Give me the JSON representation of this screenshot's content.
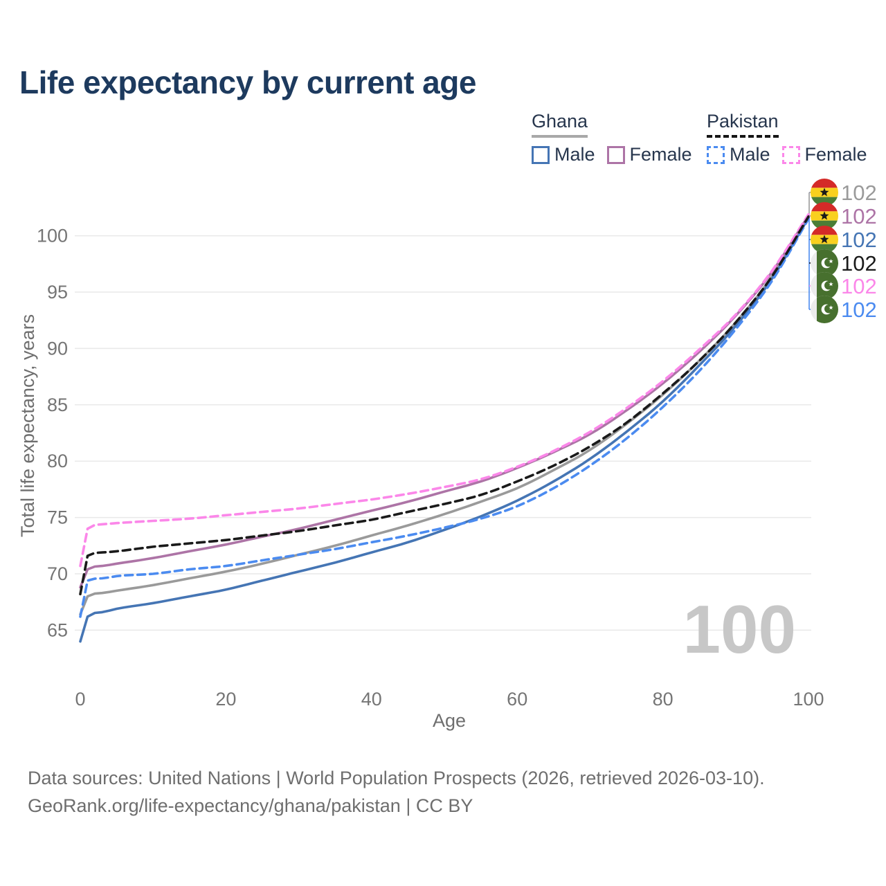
{
  "title": "Life expectancy by current age",
  "watermark": "100",
  "legend": {
    "groups": [
      {
        "name": "Ghana",
        "underline": "solid",
        "underline_color": "#a8a8a8",
        "items": [
          {
            "label": "Male",
            "color": "#4575b4",
            "dash": "solid"
          },
          {
            "label": "Female",
            "color": "#ad74a6",
            "dash": "solid"
          }
        ]
      },
      {
        "name": "Pakistan",
        "underline": "dashed",
        "underline_color": "#151515",
        "items": [
          {
            "label": "Male",
            "color": "#4b8bf0",
            "dash": "dashed"
          },
          {
            "label": "Female",
            "color": "#fb87e9",
            "dash": "dashed"
          }
        ]
      }
    ]
  },
  "footer": {
    "line1": "Data sources: United Nations | World Population Prospects (2026, retrieved 2026-03-10).",
    "line2": "GeoRank.org/life-expectancy/ghana/pakistan | CC BY"
  },
  "chart_data": {
    "type": "line",
    "title": "Life expectancy by current age",
    "xlabel": "Age",
    "ylabel": "Total life expectancy, years",
    "xlim": [
      0,
      100
    ],
    "ylim": [
      63,
      103
    ],
    "x_ticks": [
      0,
      20,
      40,
      60,
      80,
      100
    ],
    "y_ticks": [
      65,
      70,
      75,
      80,
      85,
      90,
      95,
      100
    ],
    "grid": "horizontal",
    "legend_position": "top-right",
    "ages": [
      0,
      1,
      3,
      5,
      10,
      15,
      20,
      25,
      30,
      35,
      40,
      45,
      50,
      55,
      60,
      65,
      70,
      75,
      80,
      85,
      90,
      95,
      100
    ],
    "series": [
      {
        "id": "ghana_both",
        "name": "Ghana — Both sexes",
        "color": "#9a9a9a",
        "dash": "solid",
        "values": [
          66.4,
          68.0,
          68.3,
          68.5,
          69.0,
          69.6,
          70.2,
          70.9,
          71.7,
          72.5,
          73.4,
          74.3,
          75.3,
          76.4,
          77.6,
          79.2,
          81.0,
          83.3,
          85.9,
          88.9,
          92.3,
          96.4,
          101.7
        ]
      },
      {
        "id": "ghana_male",
        "name": "Ghana — Male",
        "color": "#4575b4",
        "dash": "solid",
        "values": [
          64.0,
          66.2,
          66.6,
          66.9,
          67.4,
          68.0,
          68.6,
          69.4,
          70.2,
          71.0,
          71.9,
          72.8,
          73.9,
          75.1,
          76.5,
          78.2,
          80.2,
          82.6,
          85.3,
          88.5,
          92.0,
          96.2,
          101.6
        ]
      },
      {
        "id": "ghana_female",
        "name": "Ghana — Female",
        "color": "#ad74a6",
        "dash": "solid",
        "values": [
          68.8,
          70.4,
          70.7,
          70.9,
          71.4,
          72.0,
          72.6,
          73.3,
          74.0,
          74.8,
          75.6,
          76.4,
          77.3,
          78.2,
          79.4,
          80.8,
          82.4,
          84.5,
          86.9,
          89.7,
          92.9,
          96.8,
          101.8
        ]
      },
      {
        "id": "pakistan_male",
        "name": "Pakistan — Male",
        "color": "#4b8bf0",
        "dash": "dashed",
        "values": [
          66.2,
          69.4,
          69.6,
          69.8,
          70.0,
          70.4,
          70.7,
          71.2,
          71.7,
          72.2,
          72.8,
          73.4,
          74.1,
          74.9,
          76.0,
          77.6,
          79.6,
          82.0,
          84.8,
          88.0,
          91.7,
          96.0,
          101.5
        ]
      },
      {
        "id": "pakistan_female",
        "name": "Pakistan — Female",
        "color": "#fb87e9",
        "dash": "dashed",
        "values": [
          70.7,
          74.0,
          74.4,
          74.5,
          74.7,
          74.9,
          75.2,
          75.5,
          75.8,
          76.2,
          76.6,
          77.1,
          77.7,
          78.4,
          79.5,
          80.9,
          82.6,
          84.7,
          87.1,
          89.9,
          93.0,
          96.9,
          101.9
        ]
      },
      {
        "id": "pakistan_both",
        "name": "Pakistan — Both sexes",
        "color": "#1a1a1a",
        "dash": "dashed",
        "values": [
          68.2,
          71.6,
          71.9,
          72.0,
          72.4,
          72.7,
          73.0,
          73.4,
          73.8,
          74.3,
          74.8,
          75.5,
          76.2,
          77.0,
          78.2,
          79.6,
          81.3,
          83.4,
          86.0,
          88.9,
          92.3,
          96.4,
          101.7
        ]
      }
    ],
    "end_labels": [
      {
        "series": "ghana_both",
        "flag": "ghana",
        "text": "102",
        "color": "#9a9a9a"
      },
      {
        "series": "ghana_female",
        "flag": "ghana",
        "text": "102",
        "color": "#ad74a6"
      },
      {
        "series": "ghana_male",
        "flag": "ghana",
        "text": "102",
        "color": "#4575b4"
      },
      {
        "series": "pakistan_both",
        "flag": "pakistan",
        "text": "102",
        "color": "#1a1a1a"
      },
      {
        "series": "pakistan_female",
        "flag": "pakistan",
        "text": "102",
        "color": "#fb87e9"
      },
      {
        "series": "pakistan_male",
        "flag": "pakistan",
        "text": "102",
        "color": "#4b8bf0"
      }
    ],
    "flag_colors": {
      "ghana": {
        "red": "#d42a28",
        "gold": "#f9d01f",
        "green": "#4a7d36",
        "star": "#1a1a1a"
      },
      "pakistan": {
        "green": "#47702e",
        "white": "#ececec"
      }
    }
  }
}
